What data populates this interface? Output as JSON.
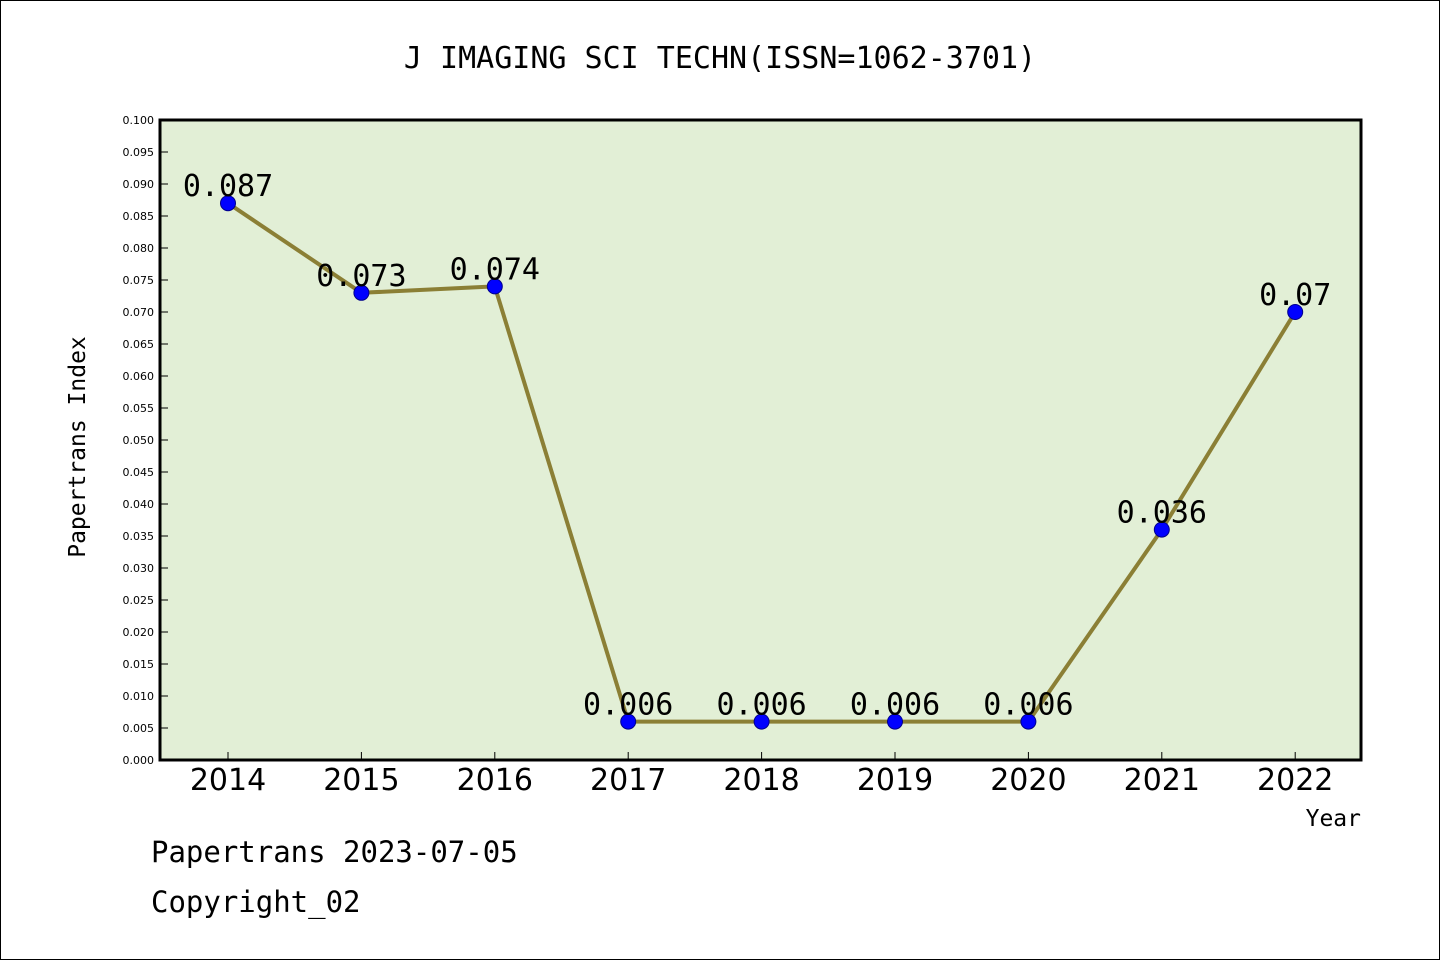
{
  "chart_data": {
    "type": "line",
    "title": "J IMAGING SCI TECHN(ISSN=1062-3701)",
    "xlabel": "Year",
    "ylabel": "Papertrans Index",
    "categories": [
      "2014",
      "2015",
      "2016",
      "2017",
      "2018",
      "2019",
      "2020",
      "2021",
      "2022"
    ],
    "series": [
      {
        "values": [
          0.087,
          0.073,
          0.074,
          0.006,
          0.006,
          0.006,
          0.006,
          0.036,
          0.07
        ],
        "labels": [
          "0.087",
          "0.073",
          "0.074",
          "0.006",
          "0.006",
          "0.006",
          "0.006",
          "0.036",
          "0.07"
        ]
      }
    ],
    "ylim": [
      0,
      0.1
    ],
    "ytick_step": 0.005,
    "ytick_labels": [
      "0.000",
      "0.005",
      "0.010",
      "0.015",
      "0.020",
      "0.025",
      "0.030",
      "0.035",
      "0.040",
      "0.045",
      "0.050",
      "0.055",
      "0.060",
      "0.065",
      "0.070",
      "0.075",
      "0.080",
      "0.085",
      "0.090",
      "0.095",
      "0.100"
    ],
    "grid": false,
    "legend": "none",
    "colors": {
      "plot_background": "#e2efd6",
      "line": "#8b7f35",
      "marker_fill": "#0000ff",
      "marker_stroke": "#00008b",
      "axis": "#000000"
    }
  },
  "footer": {
    "date_line": "Papertrans 2023-07-05",
    "copyright_line": "Copyright_02"
  }
}
